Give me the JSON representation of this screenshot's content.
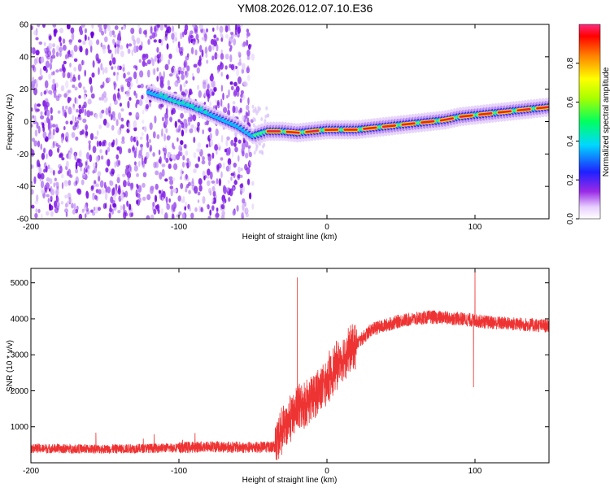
{
  "title": "YM08.2026.012.07.10.E36",
  "chart_data": [
    {
      "type": "heatmap",
      "name": "spectrogram",
      "xlabel": "Height of straight line (km)",
      "ylabel": "Frequency (Hz)",
      "xlim": [
        -200,
        150
      ],
      "ylim": [
        -60,
        60
      ],
      "x_ticks": [
        -200,
        -100,
        0,
        100
      ],
      "y_ticks": [
        -60,
        -40,
        -20,
        0,
        20,
        40,
        60
      ],
      "noise_region_x": [
        -200,
        -50
      ],
      "ridge": {
        "x": [
          -120,
          -110,
          -100,
          -90,
          -80,
          -60,
          -50,
          -40,
          -30,
          -20,
          -10,
          0,
          10,
          20,
          30,
          40,
          50,
          60,
          70,
          80,
          90,
          100,
          110,
          120,
          130,
          140,
          150
        ],
        "frequency": [
          18,
          15,
          12,
          9,
          5,
          -3,
          -9,
          -6,
          -6,
          -7,
          -6,
          -5,
          -5,
          -5,
          -4,
          -3,
          -2,
          -1,
          0,
          1,
          3,
          4,
          5,
          6,
          7,
          8,
          9
        ]
      },
      "colorbar": {
        "label": "Normalized spectral amplitude",
        "ticks": [
          0.0,
          0.2,
          0.4,
          0.6,
          0.8
        ],
        "range": [
          0,
          1
        ]
      }
    },
    {
      "type": "line",
      "name": "snr",
      "xlabel": "Height of straight line (km)",
      "ylabel": "SNR (10 * v/v)",
      "xlim": [
        -200,
        150
      ],
      "ylim": [
        0,
        5400
      ],
      "x_ticks": [
        -200,
        -100,
        0,
        100
      ],
      "y_ticks": [
        1000,
        2000,
        3000,
        4000,
        5000
      ],
      "color": "#ee3333",
      "series": [
        {
          "name": "SNR",
          "x": [
            -200,
            -150,
            -100,
            -80,
            -50,
            -35,
            -30,
            -20,
            -10,
            0,
            10,
            20,
            30,
            50,
            70,
            90,
            100,
            110,
            130,
            150
          ],
          "values": [
            400,
            380,
            420,
            450,
            420,
            450,
            900,
            1500,
            1800,
            2300,
            2900,
            3300,
            3700,
            3950,
            4050,
            4000,
            3950,
            3900,
            3850,
            3800
          ]
        }
      ],
      "annotations": {
        "spikes": [
          {
            "x": -20,
            "value": 5150
          },
          {
            "x": 100,
            "value": 5400
          },
          {
            "x": 99,
            "value": 2100
          }
        ]
      }
    }
  ]
}
